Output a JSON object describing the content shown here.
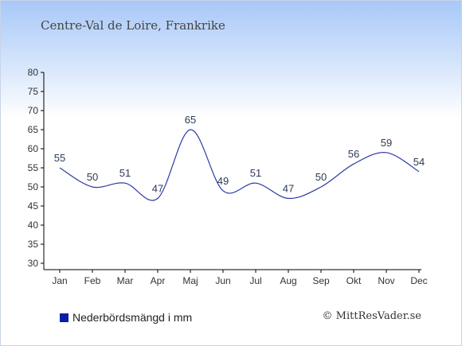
{
  "header": {
    "title": "Centre-Val de Loire, Frankrike"
  },
  "legend": {
    "label": "Nederbördsmängd i mm"
  },
  "footer": {
    "credit": "© MittResVader.se"
  },
  "colors": {
    "series": "#2b3aa6",
    "swatch": "#0a1fa8"
  },
  "chart_data": {
    "type": "line",
    "categories": [
      "Jan",
      "Feb",
      "Mar",
      "Apr",
      "Maj",
      "Jun",
      "Jul",
      "Aug",
      "Sep",
      "Okt",
      "Nov",
      "Dec"
    ],
    "values": [
      55,
      50,
      51,
      47,
      65,
      49,
      51,
      47,
      50,
      56,
      59,
      54
    ],
    "ylim": [
      30,
      80
    ],
    "yticks": [
      30,
      35,
      40,
      45,
      50,
      55,
      60,
      65,
      70,
      75,
      80
    ],
    "grid": false,
    "legend_position": "bottom-left"
  }
}
